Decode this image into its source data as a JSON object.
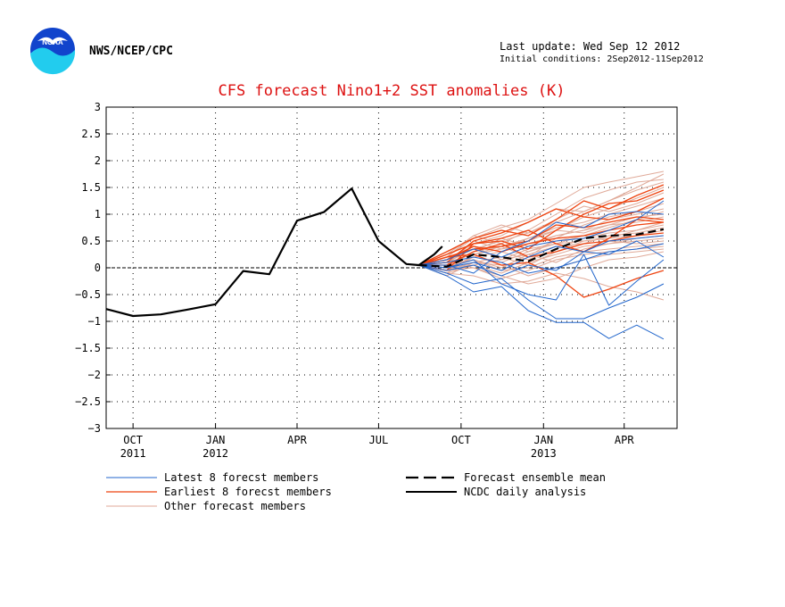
{
  "header": {
    "agency": "NWS/NCEP/CPC",
    "last_update": "Last update: Wed Sep 12 2012",
    "initial_conditions": "Initial conditions: 2Sep2012-11Sep2012"
  },
  "colors": {
    "title": "#dd1111",
    "latest": "#2266cc",
    "earliest": "#ee4411",
    "other": "#e0aa99",
    "mean": "#000000",
    "analysis": "#000000",
    "logo_blue": "#1144cc",
    "logo_cyan": "#22ccee"
  },
  "chart_data": {
    "type": "line",
    "title": "CFS forecast Nino1+2 SST anomalies (K)",
    "xlabel": "",
    "ylabel": "",
    "ylim": [
      -3,
      3
    ],
    "yticks": [
      -3,
      -2.5,
      -2,
      -1.5,
      -1,
      -0.5,
      0,
      0.5,
      1,
      1.5,
      2,
      2.5,
      3
    ],
    "ytick_labels": [
      "−3",
      "−2.5",
      "−2",
      "−1.5",
      "−1",
      "−0.5",
      "0",
      "0.5",
      "1",
      "1.5",
      "2",
      "2.5",
      "3"
    ],
    "xlim": [
      "2011-09-01",
      "2013-05-30"
    ],
    "xticks": [
      {
        "date": "2011-10-01",
        "label": "OCT",
        "year": "2011"
      },
      {
        "date": "2012-01-01",
        "label": "JAN",
        "year": "2012"
      },
      {
        "date": "2012-04-01",
        "label": "APR",
        "year": ""
      },
      {
        "date": "2012-07-01",
        "label": "JUL",
        "year": ""
      },
      {
        "date": "2012-10-01",
        "label": "OCT",
        "year": ""
      },
      {
        "date": "2013-01-01",
        "label": "JAN",
        "year": "2013"
      },
      {
        "date": "2013-04-01",
        "label": "APR",
        "year": ""
      }
    ],
    "grid": true,
    "legend": {
      "placement": "bottom",
      "entries": [
        {
          "key": "latest",
          "label": "Latest 8 forecst members"
        },
        {
          "key": "earliest",
          "label": "Earliest 8 forecst members"
        },
        {
          "key": "other",
          "label": "Other forecast members"
        },
        {
          "key": "mean",
          "label": "Forecast ensemble mean"
        },
        {
          "key": "analysis",
          "label": "NCDC daily analysis"
        }
      ]
    },
    "forecast_dates": [
      "2012-08-15",
      "2012-09-15",
      "2012-10-15",
      "2012-11-15",
      "2012-12-15",
      "2013-01-15",
      "2013-02-15",
      "2013-03-15",
      "2013-04-15",
      "2013-05-15"
    ],
    "analysis": {
      "name": "NCDC daily analysis",
      "x": [
        "2011-09-01",
        "2011-10-01",
        "2011-11-01",
        "2011-12-01",
        "2012-01-01",
        "2012-02-01",
        "2012-03-01",
        "2012-04-01",
        "2012-05-01",
        "2012-06-01",
        "2012-07-01",
        "2012-08-01",
        "2012-08-15",
        "2012-09-01",
        "2012-09-10"
      ],
      "y": [
        -0.77,
        -0.9,
        -0.87,
        -0.78,
        -0.68,
        -0.06,
        -0.12,
        0.88,
        1.04,
        1.48,
        0.5,
        0.07,
        0.05,
        0.25,
        0.4
      ]
    },
    "ensemble_mean": {
      "name": "Forecast ensemble mean",
      "y": [
        0.05,
        0.02,
        0.25,
        0.2,
        0.12,
        0.35,
        0.55,
        0.6,
        0.62,
        0.72
      ]
    },
    "members_other": [
      [
        0.05,
        0.2,
        0.55,
        0.75,
        0.9,
        1.2,
        1.5,
        1.6,
        1.7,
        1.8
      ],
      [
        0.05,
        0.25,
        0.6,
        0.45,
        0.7,
        1.0,
        1.3,
        1.45,
        1.6,
        1.65
      ],
      [
        0.05,
        0.1,
        0.35,
        0.5,
        0.65,
        0.85,
        1.05,
        1.25,
        1.45,
        1.6
      ],
      [
        0.05,
        0.15,
        0.4,
        0.3,
        0.5,
        0.7,
        0.95,
        1.1,
        1.3,
        1.5
      ],
      [
        0.05,
        0.05,
        0.3,
        0.4,
        0.2,
        0.55,
        0.8,
        0.95,
        1.05,
        1.2
      ],
      [
        0.05,
        0.0,
        0.2,
        0.1,
        0.3,
        0.5,
        0.6,
        0.75,
        0.9,
        1.05
      ],
      [
        0.05,
        0.1,
        0.25,
        0.35,
        0.45,
        0.6,
        0.7,
        0.8,
        0.85,
        0.95
      ],
      [
        0.05,
        -0.05,
        0.1,
        0.2,
        0.05,
        0.3,
        0.5,
        0.55,
        0.7,
        0.8
      ],
      [
        0.05,
        0.0,
        0.15,
        0.0,
        0.25,
        0.4,
        0.45,
        0.6,
        0.65,
        0.75
      ],
      [
        0.05,
        -0.1,
        0.05,
        -0.1,
        0.1,
        0.25,
        0.4,
        0.45,
        0.55,
        0.6
      ],
      [
        0.05,
        0.2,
        0.35,
        0.5,
        0.3,
        0.45,
        0.6,
        0.5,
        0.45,
        0.5
      ],
      [
        0.05,
        -0.05,
        0.0,
        -0.2,
        -0.05,
        0.15,
        0.25,
        0.3,
        0.35,
        0.4
      ],
      [
        0.05,
        0.1,
        0.0,
        -0.15,
        -0.3,
        -0.2,
        0.0,
        0.15,
        0.2,
        0.3
      ],
      [
        0.05,
        -0.1,
        -0.15,
        -0.3,
        -0.25,
        -0.1,
        -0.2,
        -0.35,
        -0.45,
        -0.6
      ],
      [
        0.05,
        0.15,
        0.45,
        0.6,
        0.85,
        1.1,
        1.05,
        1.25,
        1.5,
        1.75
      ],
      [
        0.05,
        0.05,
        0.5,
        0.35,
        0.55,
        0.75,
        0.85,
        1.0,
        1.15,
        1.3
      ],
      [
        0.05,
        0.0,
        0.3,
        0.55,
        0.4,
        0.6,
        0.7,
        0.9,
        1.0,
        1.1
      ],
      [
        0.05,
        -0.05,
        0.2,
        0.3,
        0.15,
        0.35,
        0.55,
        0.65,
        0.7,
        0.85
      ],
      [
        0.05,
        0.1,
        0.4,
        0.15,
        0.35,
        0.45,
        0.5,
        0.55,
        0.6,
        0.7
      ],
      [
        0.05,
        -0.15,
        0.1,
        0.05,
        -0.15,
        0.0,
        0.15,
        0.25,
        0.3,
        0.35
      ],
      [
        0.05,
        0.05,
        0.15,
        -0.05,
        0.0,
        0.2,
        0.3,
        0.35,
        0.4,
        0.45
      ],
      [
        0.05,
        0.2,
        0.6,
        0.8,
        0.65,
        0.9,
        1.15,
        1.05,
        1.2,
        1.4
      ],
      [
        0.05,
        0.0,
        0.05,
        0.15,
        0.25,
        0.1,
        0.35,
        0.45,
        0.5,
        0.55
      ],
      [
        0.05,
        -0.1,
        0.25,
        0.4,
        0.55,
        0.7,
        0.65,
        0.8,
        0.95,
        1.0
      ]
    ],
    "members_earliest": [
      [
        0.05,
        0.3,
        0.55,
        0.7,
        0.6,
        0.9,
        1.25,
        1.1,
        1.35,
        1.55
      ],
      [
        0.05,
        0.25,
        0.45,
        0.5,
        0.35,
        0.7,
        1.0,
        1.2,
        1.25,
        1.45
      ],
      [
        0.05,
        0.1,
        0.5,
        0.65,
        0.85,
        1.1,
        0.95,
        0.9,
        1.05,
        1.3
      ],
      [
        0.05,
        0.2,
        0.35,
        0.4,
        0.5,
        0.8,
        0.75,
        0.85,
        0.95,
        0.9
      ],
      [
        0.05,
        0.15,
        0.4,
        0.3,
        0.45,
        0.55,
        0.6,
        0.7,
        0.8,
        0.85
      ],
      [
        0.05,
        0.05,
        0.3,
        0.45,
        0.2,
        0.3,
        0.45,
        0.5,
        0.6,
        0.65
      ],
      [
        0.05,
        0.2,
        0.25,
        0.05,
        0.1,
        -0.15,
        -0.55,
        -0.4,
        -0.2,
        -0.05
      ],
      [
        0.05,
        -0.05,
        0.45,
        0.55,
        0.7,
        0.45,
        0.3,
        0.55,
        0.9,
        0.85
      ]
    ],
    "members_latest": [
      [
        0.05,
        -0.15,
        -0.45,
        -0.35,
        -0.8,
        -1.02,
        -1.02,
        -1.32,
        -1.07,
        -1.33
      ],
      [
        0.05,
        -0.1,
        -0.3,
        -0.2,
        -0.6,
        -0.95,
        -0.95,
        -0.75,
        -0.55,
        -0.3
      ],
      [
        0.05,
        0.0,
        0.15,
        -0.3,
        -0.5,
        -0.6,
        0.25,
        -0.7,
        -0.25,
        0.15
      ],
      [
        0.05,
        0.1,
        0.2,
        0.1,
        -0.1,
        0.0,
        0.15,
        0.3,
        0.35,
        0.45
      ],
      [
        0.05,
        -0.05,
        0.05,
        -0.15,
        0.05,
        -0.05,
        0.3,
        0.5,
        0.55,
        0.6
      ],
      [
        0.05,
        0.15,
        0.35,
        0.2,
        0.4,
        0.5,
        0.55,
        0.7,
        0.9,
        1.25
      ],
      [
        0.05,
        0.05,
        -0.1,
        0.3,
        0.5,
        0.85,
        0.75,
        1.0,
        1.05,
        1.0
      ],
      [
        0.05,
        0.0,
        0.1,
        -0.05,
        0.2,
        0.4,
        0.3,
        0.25,
        0.5,
        0.2
      ]
    ]
  }
}
